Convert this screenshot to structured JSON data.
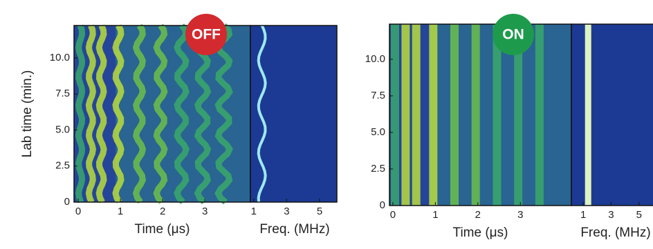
{
  "figure": {
    "panels": [
      {
        "badge": "OFF",
        "badge_color": "#d32a2f",
        "y_label": "Lab time (min.)",
        "ylim": [
          0,
          12.25
        ],
        "yticks": [
          0,
          2.5,
          {
            "value": 5,
            "label": "5.0"
          },
          7.5,
          {
            "value": 10,
            "label": "10.0"
          }
        ],
        "time": {
          "xlim": [
            -0.1,
            4.08
          ],
          "xticks": [
            0,
            1,
            2,
            3
          ],
          "x_label": "Time (μs)"
        },
        "freq": {
          "xlim": [
            0.8,
            6.05
          ],
          "xticks": [
            1,
            3,
            5
          ],
          "x_label": "Freq. (MHz)"
        }
      },
      {
        "badge": "ON",
        "badge_color": "#1e9a4c",
        "ylim": [
          0,
          12.4
        ],
        "yticks": [
          0,
          2.5,
          {
            "value": 5,
            "label": "5.0"
          },
          7.5,
          {
            "value": 10,
            "label": "10.0"
          }
        ],
        "time": {
          "xlim": [
            -0.08,
            4.2
          ],
          "xticks": [
            0,
            1,
            2,
            3
          ],
          "x_label": "Time (μs)"
        },
        "freq": {
          "xlim": [
            0.15,
            6.3
          ],
          "xticks": [
            1,
            3,
            5
          ],
          "x_label": "Freq. (MHz)"
        }
      }
    ]
  }
}
